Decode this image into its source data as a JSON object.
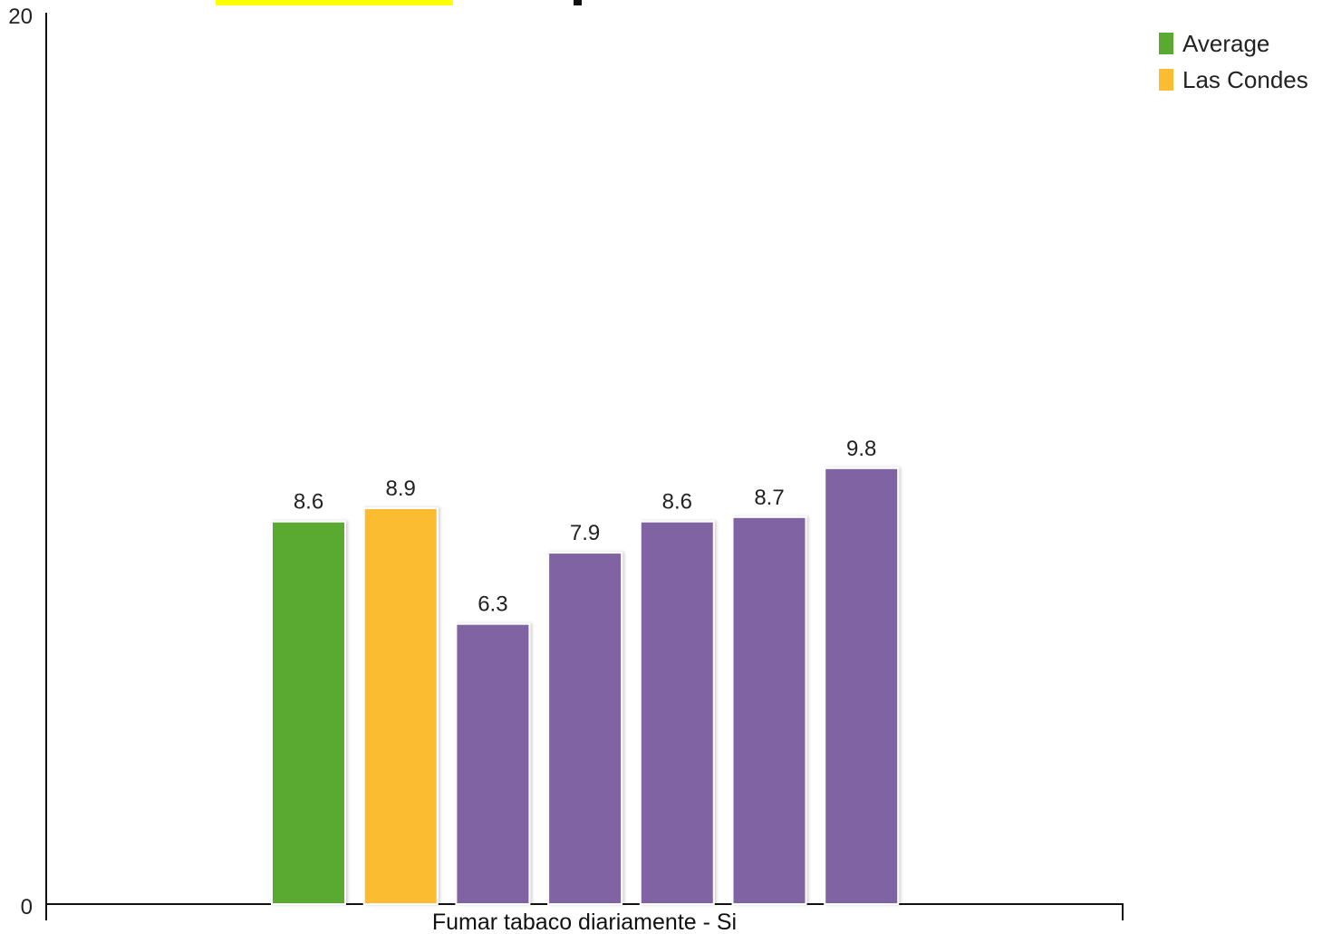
{
  "chart_data": {
    "type": "bar",
    "category": "Fumar tabaco diariamente - Si",
    "ylim": [
      0,
      20
    ],
    "y_ticks": [
      0,
      20
    ],
    "grid": false,
    "legend_position": "top-right",
    "bars": [
      {
        "value": 8.6,
        "label": "8.6",
        "color": "#5aaa31"
      },
      {
        "value": 8.9,
        "label": "8.9",
        "color": "#fbbc31"
      },
      {
        "value": 6.3,
        "label": "6.3",
        "color": "#8064a2"
      },
      {
        "value": 7.9,
        "label": "7.9",
        "color": "#8064a2"
      },
      {
        "value": 8.6,
        "label": "8.6",
        "color": "#8064a2"
      },
      {
        "value": 8.7,
        "label": "8.7",
        "color": "#8064a2"
      },
      {
        "value": 9.8,
        "label": "9.8",
        "color": "#8064a2"
      }
    ],
    "legend": [
      {
        "name": "Average",
        "color": "#5aaa31"
      },
      {
        "name": "Las Condes",
        "color": "#fbbc31"
      }
    ]
  },
  "highlight_color": "#ffff00"
}
